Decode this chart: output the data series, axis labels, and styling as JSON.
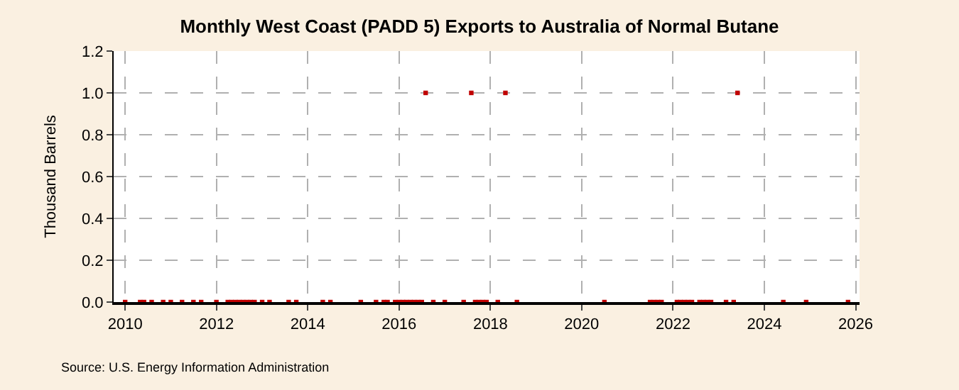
{
  "chart_data": {
    "type": "scatter",
    "title": "Monthly West Coast (PADD 5) Exports to Australia of Normal Butane",
    "ylabel": "Thousand Barrels",
    "annotations": [
      "Source: U.S. Energy Information Administration"
    ],
    "x": [
      "2010-01",
      "2010-05",
      "2010-06",
      "2010-08",
      "2010-11",
      "2011-01",
      "2011-04",
      "2011-07",
      "2011-09",
      "2012-01",
      "2012-04",
      "2012-05",
      "2012-06",
      "2012-07",
      "2012-08",
      "2012-09",
      "2012-10",
      "2012-11",
      "2013-01",
      "2013-03",
      "2013-08",
      "2013-10",
      "2014-05",
      "2014-07",
      "2015-03",
      "2015-07",
      "2015-09",
      "2015-10",
      "2015-12",
      "2016-01",
      "2016-02",
      "2016-03",
      "2016-04",
      "2016-05",
      "2016-06",
      "2016-07",
      "2016-08",
      "2016-10",
      "2017-01",
      "2017-06",
      "2017-08",
      "2017-09",
      "2017-10",
      "2017-11",
      "2017-12",
      "2018-03",
      "2018-05",
      "2018-08",
      "2020-07",
      "2021-07",
      "2021-08",
      "2021-09",
      "2021-10",
      "2022-02",
      "2022-03",
      "2022-04",
      "2022-05",
      "2022-06",
      "2022-08",
      "2022-09",
      "2022-10",
      "2022-11",
      "2023-03",
      "2023-05",
      "2023-06",
      "2024-06",
      "2024-12",
      "2025-11"
    ],
    "series": [
      {
        "color": "#c00000",
        "values": [
          0,
          0,
          0,
          0,
          0,
          0,
          0,
          0,
          0,
          0,
          0,
          0,
          0,
          0,
          0,
          0,
          0,
          0,
          0,
          0,
          0,
          0,
          0,
          0,
          0,
          0,
          0,
          0,
          0,
          0,
          0,
          0,
          0,
          0,
          0,
          0,
          1,
          0,
          0,
          0,
          1,
          0,
          0,
          0,
          0,
          0,
          1,
          0,
          0,
          0,
          0,
          0,
          0,
          0,
          0,
          0,
          0,
          0,
          0,
          0,
          0,
          0,
          0,
          0,
          1,
          0,
          0,
          0
        ]
      }
    ],
    "xlim": [
      "2009-10",
      "2026-02"
    ],
    "xticks": [
      {
        "value": "2010",
        "label": "2010"
      },
      {
        "value": "2012",
        "label": "2012"
      },
      {
        "value": "2014",
        "label": "2014"
      },
      {
        "value": "2016",
        "label": "2016"
      },
      {
        "value": "2018",
        "label": "2018"
      },
      {
        "value": "2020",
        "label": "2020"
      },
      {
        "value": "2022",
        "label": "2022"
      },
      {
        "value": "2024",
        "label": "2024"
      },
      {
        "value": "2026",
        "label": "2026"
      }
    ],
    "ylim": [
      0,
      1.2
    ],
    "yticks": [
      {
        "value": 0,
        "label": "0.0"
      },
      {
        "value": 0.2,
        "label": "0.2"
      },
      {
        "value": 0.4,
        "label": "0.4"
      },
      {
        "value": 0.6,
        "label": "0.6"
      },
      {
        "value": 0.8,
        "label": "0.8"
      },
      {
        "value": 1.0,
        "label": "1.0"
      },
      {
        "value": 1.2,
        "label": "1.2"
      }
    ],
    "grid": true,
    "marker": "square"
  }
}
